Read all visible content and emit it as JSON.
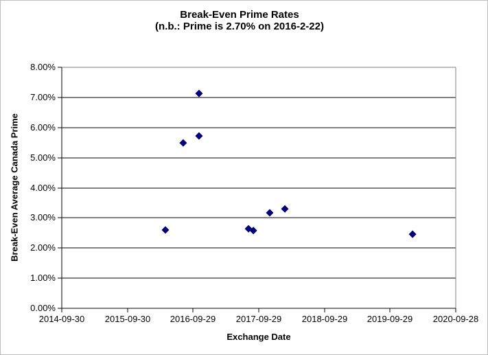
{
  "chart": {
    "title_line1": "Break-Even Prime Rates",
    "title_line2": "(n.b.: Prime is 2.70% on 2016-2-22)",
    "xlabel": "Exchange Date",
    "ylabel": "Break-Even Average Canada Prime"
  },
  "chart_data": {
    "type": "scatter",
    "title": "Break-Even Prime Rates (n.b.: Prime is 2.70% on 2016-2-22)",
    "xlabel": "Exchange Date",
    "ylabel": "Break-Even Average Canada Prime",
    "x_range": [
      "2014-09-30",
      "2020-09-28"
    ],
    "ylim": [
      0,
      8
    ],
    "x_ticks": [
      "2014-09-30",
      "2015-09-30",
      "2016-09-29",
      "2017-09-29",
      "2018-09-29",
      "2019-09-29",
      "2020-09-28"
    ],
    "y_ticks": [
      {
        "value": 0,
        "label": "0.00%"
      },
      {
        "value": 1,
        "label": "1.00%"
      },
      {
        "value": 2,
        "label": "2.00%"
      },
      {
        "value": 3,
        "label": "3.00%"
      },
      {
        "value": 4,
        "label": "4.00%"
      },
      {
        "value": 5,
        "label": "5.00%"
      },
      {
        "value": 6,
        "label": "6.00%"
      },
      {
        "value": 7,
        "label": "7.00%"
      },
      {
        "value": 8,
        "label": "8.00%"
      }
    ],
    "grid": "horizontal",
    "legend": "none",
    "marker": {
      "shape": "diamond",
      "color": "#000080",
      "outline": "#000066",
      "size": 9
    },
    "points": [
      {
        "x": "2016-04-28",
        "y": 2.6
      },
      {
        "x": "2016-08-05",
        "y": 5.49
      },
      {
        "x": "2016-11-01",
        "y": 7.13
      },
      {
        "x": "2016-11-01",
        "y": 5.72
      },
      {
        "x": "2017-08-03",
        "y": 2.64
      },
      {
        "x": "2017-08-30",
        "y": 2.58
      },
      {
        "x": "2017-11-29",
        "y": 3.17
      },
      {
        "x": "2018-02-21",
        "y": 3.3
      },
      {
        "x": "2020-02-01",
        "y": 2.46
      }
    ]
  },
  "colors": {
    "gridline": "#000000",
    "axis": "#000000",
    "plot_border": "#808080",
    "marker": "#000080",
    "background": "#ffffff"
  }
}
